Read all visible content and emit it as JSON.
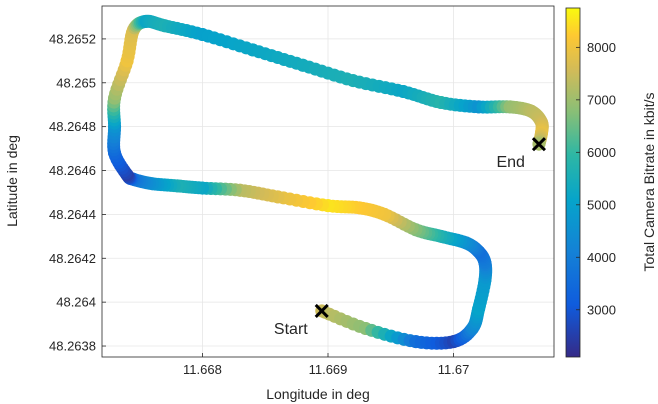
{
  "chart_data": {
    "type": "scatter",
    "title": "",
    "xlabel": "Longitude in deg",
    "ylabel": "Latitude in deg",
    "xlim": [
      11.6672,
      11.6708
    ],
    "ylim": [
      48.26375,
      48.26535
    ],
    "xticks": [
      "11.668",
      "11.669",
      "11.67"
    ],
    "xtick_values": [
      11.668,
      11.669,
      11.67
    ],
    "yticks": [
      "48.2638",
      "48.264",
      "48.2642",
      "48.2644",
      "48.2646",
      "48.2648",
      "48.265",
      "48.2652"
    ],
    "ytick_values": [
      48.2638,
      48.264,
      48.2642,
      48.2644,
      48.2646,
      48.2648,
      48.265,
      48.2652
    ],
    "grid": true,
    "colormap": "parula",
    "colorbar": {
      "label": "Total Camera Bitrate in kbit/s",
      "range": [
        2100,
        8750
      ],
      "ticks": [
        "3000",
        "4000",
        "5000",
        "6000",
        "7000",
        "8000"
      ],
      "tick_values": [
        3000,
        4000,
        5000,
        6000,
        7000,
        8000
      ]
    },
    "markers": [
      {
        "label": "Start",
        "lon": 11.66895,
        "lat": 48.26396
      },
      {
        "label": "End",
        "lon": 11.67068,
        "lat": 48.26472
      }
    ],
    "track": {
      "lon": [
        11.66895,
        11.6693,
        11.6697,
        11.67,
        11.67015,
        11.6702,
        11.67025,
        11.67025,
        11.6702,
        11.6701,
        11.6699,
        11.6697,
        11.66945,
        11.66925,
        11.669,
        11.6686,
        11.6683,
        11.668,
        11.6678,
        11.6676,
        11.66745,
        11.6674,
        11.6673,
        11.6673,
        11.6673,
        11.6674,
        11.66745,
        11.66755,
        11.6677,
        11.668,
        11.6684,
        11.6688,
        11.6692,
        11.6696,
        11.6699,
        11.6702,
        11.67045,
        11.67062,
        11.6707,
        11.6707,
        11.67068
      ],
      "lat": [
        48.26396,
        48.26388,
        48.26382,
        48.26382,
        48.26388,
        48.26397,
        48.2641,
        48.26418,
        48.26423,
        48.26427,
        48.2643,
        48.26433,
        48.2644,
        48.26443,
        48.26444,
        48.26448,
        48.26451,
        48.26452,
        48.26453,
        48.26454,
        48.26456,
        48.26458,
        48.26468,
        48.2648,
        48.26493,
        48.2651,
        48.26524,
        48.26528,
        48.26526,
        48.26522,
        48.26515,
        48.26508,
        48.26501,
        48.26496,
        48.26491,
        48.26489,
        48.26489,
        48.26487,
        48.26482,
        48.26477,
        48.26472
      ],
      "bitrate": [
        7500,
        6800,
        3600,
        2600,
        4200,
        5100,
        4800,
        4000,
        3600,
        4400,
        5600,
        6700,
        8000,
        8200,
        8500,
        7800,
        7300,
        5200,
        5600,
        4600,
        3700,
        2500,
        3400,
        4600,
        6900,
        8000,
        7700,
        5200,
        5600,
        5000,
        5200,
        5400,
        5600,
        5200,
        5800,
        4600,
        6900,
        7300,
        7500,
        7900,
        7100
      ]
    }
  }
}
